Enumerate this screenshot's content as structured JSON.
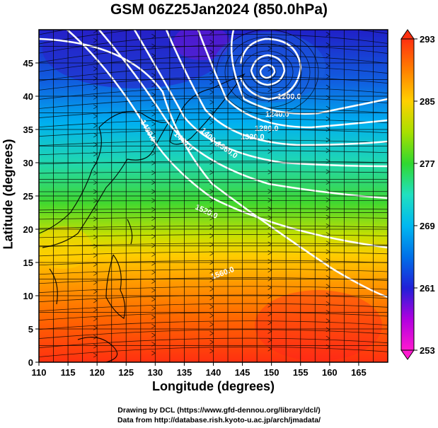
{
  "title": "GSM 06Z25Jan2024 (850.0hPa)",
  "xlabel": "Longitude (degrees)",
  "ylabel": "Latitude  (degrees)",
  "credit_line1": "Drawing by DCL (https://www.gfd-dennou.org/library/dcl/)",
  "credit_line2": "Data from http://database.rish.kyoto-u.ac.jp/arch/jmadata/",
  "map": {
    "lon_range": [
      110,
      170
    ],
    "lat_range": [
      0,
      50
    ],
    "x_ticks": [
      110,
      115,
      120,
      125,
      130,
      135,
      140,
      145,
      150,
      155,
      160,
      165
    ],
    "y_ticks": [
      0,
      5,
      10,
      15,
      20,
      25,
      30,
      35,
      40,
      45
    ],
    "grid": true
  },
  "colorbar": {
    "min": 253,
    "max": 293,
    "ticks": [
      253,
      261,
      269,
      277,
      285,
      293
    ],
    "colors": [
      "#ff1ad0",
      "#b000e0",
      "#2020d8",
      "#0070e8",
      "#00b8f0",
      "#20e0c0",
      "#30d830",
      "#a8e000",
      "#ffd000",
      "#ff8000",
      "#ff3010"
    ]
  },
  "contour_labels": [
    "1200.0",
    "1240.0",
    "1280.0",
    "1320.0",
    "1360.0",
    "1400.0",
    "1440.0",
    "1480.0",
    "1520.0",
    "1560.0"
  ]
}
